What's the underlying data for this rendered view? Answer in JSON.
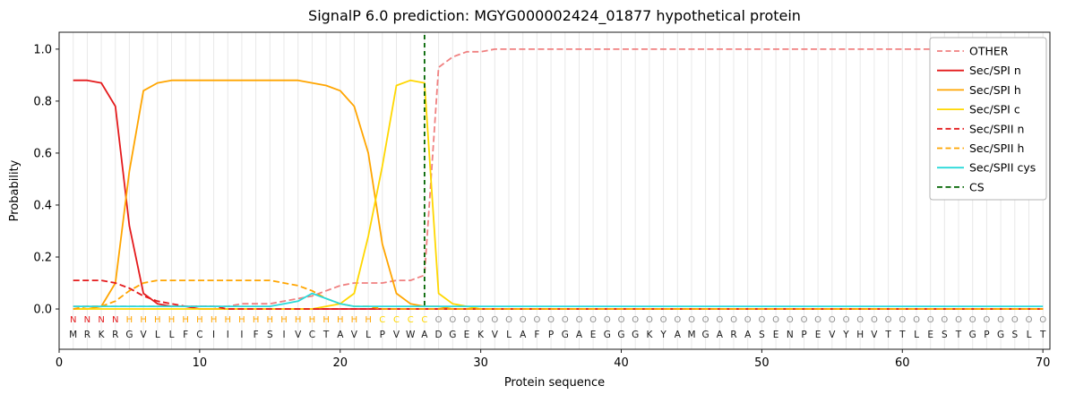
{
  "title": "SignalP 6.0 prediction: MGYG000002424_01877 hypothetical protein",
  "axes": {
    "xlabel": "Protein sequence",
    "ylabel": "Probability",
    "xticks": [
      0,
      10,
      20,
      30,
      40,
      50,
      60,
      70
    ],
    "yticks": [
      0.0,
      0.2,
      0.4,
      0.6,
      0.8,
      1.0
    ]
  },
  "chart_data": {
    "type": "line",
    "title": "SignalP 6.0 prediction: MGYG000002424_01877 hypothetical protein",
    "xlabel": "Protein sequence",
    "ylabel": "Probability",
    "xlim": [
      0,
      70.5
    ],
    "ylim": [
      -0.155,
      1.065
    ],
    "grid": "vertical-per-residue",
    "legend_position": "upper right",
    "x": [
      1,
      2,
      3,
      4,
      5,
      6,
      7,
      8,
      9,
      10,
      11,
      12,
      13,
      14,
      15,
      16,
      17,
      18,
      19,
      20,
      21,
      22,
      23,
      24,
      25,
      26,
      27,
      28,
      29,
      30,
      31,
      32,
      33,
      34,
      35,
      36,
      37,
      38,
      39,
      40,
      41,
      42,
      43,
      44,
      45,
      46,
      47,
      48,
      49,
      50,
      51,
      52,
      53,
      54,
      55,
      56,
      57,
      58,
      59,
      60,
      61,
      62,
      63,
      64,
      65,
      66,
      67,
      68,
      69,
      70
    ],
    "series": [
      {
        "name": "OTHER",
        "color": "#f08080",
        "dash": true,
        "values": [
          0.01,
          0.01,
          0.01,
          0.01,
          0.01,
          0.01,
          0.01,
          0.01,
          0.01,
          0.01,
          0.01,
          0.01,
          0.02,
          0.02,
          0.02,
          0.03,
          0.04,
          0.05,
          0.07,
          0.09,
          0.1,
          0.1,
          0.1,
          0.11,
          0.11,
          0.13,
          0.93,
          0.97,
          0.99,
          0.99,
          1.0,
          1.0,
          1.0,
          1.0,
          1.0,
          1.0,
          1.0,
          1.0,
          1.0,
          1.0,
          1.0,
          1.0,
          1.0,
          1.0,
          1.0,
          1.0,
          1.0,
          1.0,
          1.0,
          1.0,
          1.0,
          1.0,
          1.0,
          1.0,
          1.0,
          1.0,
          1.0,
          1.0,
          1.0,
          1.0,
          1.0,
          1.0,
          1.0,
          1.0,
          1.0,
          1.0,
          1.0,
          1.0,
          1.0,
          1.0
        ]
      },
      {
        "name": "Sec/SPI n",
        "color": "#e41a1c",
        "dash": false,
        "values": [
          0.88,
          0.88,
          0.87,
          0.78,
          0.32,
          0.06,
          0.02,
          0.01,
          0.01,
          0.0,
          0.0,
          0.0,
          0.0,
          0.0,
          0.0,
          0.0,
          0.0,
          0.0,
          0.0,
          0.0,
          0.0,
          0.0,
          0.0,
          0.0,
          0.0,
          0.0,
          0.0,
          0.0,
          0.0,
          0.0,
          0.0,
          0.0,
          0.0,
          0.0,
          0.0,
          0.0,
          0.0,
          0.0,
          0.0,
          0.0,
          0.0,
          0.0,
          0.0,
          0.0,
          0.0,
          0.0,
          0.0,
          0.0,
          0.0,
          0.0,
          0.0,
          0.0,
          0.0,
          0.0,
          0.0,
          0.0,
          0.0,
          0.0,
          0.0,
          0.0,
          0.0,
          0.0,
          0.0,
          0.0,
          0.0,
          0.0,
          0.0,
          0.0,
          0.0,
          0.0
        ]
      },
      {
        "name": "Sec/SPI h",
        "color": "#ffa500",
        "dash": false,
        "values": [
          0.0,
          0.0,
          0.01,
          0.1,
          0.53,
          0.84,
          0.87,
          0.88,
          0.88,
          0.88,
          0.88,
          0.88,
          0.88,
          0.88,
          0.88,
          0.88,
          0.88,
          0.87,
          0.86,
          0.84,
          0.78,
          0.6,
          0.25,
          0.06,
          0.02,
          0.01,
          0.01,
          0.0,
          0.0,
          0.0,
          0.0,
          0.0,
          0.0,
          0.0,
          0.0,
          0.0,
          0.0,
          0.0,
          0.0,
          0.0,
          0.0,
          0.0,
          0.0,
          0.0,
          0.0,
          0.0,
          0.0,
          0.0,
          0.0,
          0.0,
          0.0,
          0.0,
          0.0,
          0.0,
          0.0,
          0.0,
          0.0,
          0.0,
          0.0,
          0.0,
          0.0,
          0.0,
          0.0,
          0.0,
          0.0,
          0.0,
          0.0,
          0.0,
          0.0,
          0.0
        ]
      },
      {
        "name": "Sec/SPI c",
        "color": "#ffd700",
        "dash": false,
        "values": [
          0.0,
          0.0,
          0.0,
          0.0,
          0.0,
          0.0,
          0.0,
          0.0,
          0.0,
          0.0,
          0.0,
          0.0,
          0.0,
          0.0,
          0.0,
          0.0,
          0.0,
          0.0,
          0.01,
          0.02,
          0.06,
          0.28,
          0.55,
          0.86,
          0.88,
          0.87,
          0.06,
          0.02,
          0.01,
          0.0,
          0.0,
          0.0,
          0.0,
          0.0,
          0.0,
          0.0,
          0.0,
          0.0,
          0.0,
          0.0,
          0.0,
          0.0,
          0.0,
          0.0,
          0.0,
          0.0,
          0.0,
          0.0,
          0.0,
          0.0,
          0.0,
          0.0,
          0.0,
          0.0,
          0.0,
          0.0,
          0.0,
          0.0,
          0.0,
          0.0,
          0.0,
          0.0,
          0.0,
          0.0,
          0.0,
          0.0,
          0.0,
          0.0,
          0.0,
          0.0
        ]
      },
      {
        "name": "Sec/SPII n",
        "color": "#e41a1c",
        "dash": true,
        "values": [
          0.11,
          0.11,
          0.11,
          0.1,
          0.08,
          0.05,
          0.03,
          0.02,
          0.01,
          0.01,
          0.01,
          0.0,
          0.0,
          0.0,
          0.0,
          0.0,
          0.0,
          0.0,
          0.0,
          0.0,
          0.0,
          0.0,
          0.0,
          0.0,
          0.0,
          0.0,
          0.0,
          0.0,
          0.0,
          0.0,
          0.0,
          0.0,
          0.0,
          0.0,
          0.0,
          0.0,
          0.0,
          0.0,
          0.0,
          0.0,
          0.0,
          0.0,
          0.0,
          0.0,
          0.0,
          0.0,
          0.0,
          0.0,
          0.0,
          0.0,
          0.0,
          0.0,
          0.0,
          0.0,
          0.0,
          0.0,
          0.0,
          0.0,
          0.0,
          0.0,
          0.0,
          0.0,
          0.0,
          0.0,
          0.0,
          0.0,
          0.0,
          0.0,
          0.0,
          0.0
        ]
      },
      {
        "name": "Sec/SPII h",
        "color": "#ffa500",
        "dash": true,
        "values": [
          0.0,
          0.01,
          0.01,
          0.03,
          0.07,
          0.1,
          0.11,
          0.11,
          0.11,
          0.11,
          0.11,
          0.11,
          0.11,
          0.11,
          0.11,
          0.1,
          0.09,
          0.07,
          0.04,
          0.02,
          0.01,
          0.01,
          0.0,
          0.0,
          0.0,
          0.0,
          0.0,
          0.0,
          0.0,
          0.0,
          0.0,
          0.0,
          0.0,
          0.0,
          0.0,
          0.0,
          0.0,
          0.0,
          0.0,
          0.0,
          0.0,
          0.0,
          0.0,
          0.0,
          0.0,
          0.0,
          0.0,
          0.0,
          0.0,
          0.0,
          0.0,
          0.0,
          0.0,
          0.0,
          0.0,
          0.0,
          0.0,
          0.0,
          0.0,
          0.0,
          0.0,
          0.0,
          0.0,
          0.0,
          0.0,
          0.0,
          0.0,
          0.0,
          0.0,
          0.0
        ]
      },
      {
        "name": "Sec/SPII cys",
        "color": "#2adada",
        "dash": false,
        "values": [
          0.01,
          0.01,
          0.01,
          0.01,
          0.01,
          0.01,
          0.01,
          0.01,
          0.01,
          0.01,
          0.01,
          0.01,
          0.01,
          0.01,
          0.01,
          0.02,
          0.03,
          0.06,
          0.04,
          0.02,
          0.01,
          0.01,
          0.01,
          0.01,
          0.01,
          0.01,
          0.01,
          0.01,
          0.01,
          0.01,
          0.01,
          0.01,
          0.01,
          0.01,
          0.01,
          0.01,
          0.01,
          0.01,
          0.01,
          0.01,
          0.01,
          0.01,
          0.01,
          0.01,
          0.01,
          0.01,
          0.01,
          0.01,
          0.01,
          0.01,
          0.01,
          0.01,
          0.01,
          0.01,
          0.01,
          0.01,
          0.01,
          0.01,
          0.01,
          0.01,
          0.01,
          0.01,
          0.01,
          0.01,
          0.01,
          0.01,
          0.01,
          0.01,
          0.01,
          0.01
        ]
      }
    ],
    "cs_marker": {
      "label": "CS",
      "x": 26,
      "color": "#006400",
      "dash": true
    },
    "sequence": "MRKRGVLLFCIIIFSIVCTAVLPVWADGEKVLAFPGAEGGGKYAMGARASENPEVYHVTTLESTGPGSLT",
    "region_row": "NNNNHHHHHHHHHHHHHHHHHHCCCCOOOOOOOOOOOOOOOOOOOOOOOOOOOOOOOOOOOOOOOOOOOO",
    "region_colors": {
      "N": "#e41a1c",
      "H": "#ffa500",
      "C": "#ffd700",
      "O": "#8f8f8f"
    },
    "sequence_color": "#1a1a1a"
  }
}
